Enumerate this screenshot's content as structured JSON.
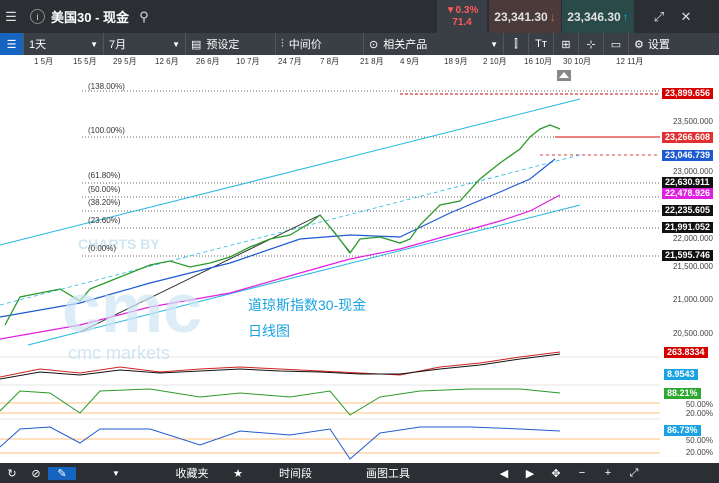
{
  "header": {
    "symbol": "美国30 - 现金",
    "change_pct": "▼0.3%",
    "change_pts": "71.4",
    "sell_price": "23,341.30",
    "buy_price": "23,346.30"
  },
  "toolbar": {
    "interval": "1天",
    "period": "7月",
    "preset": "预设定",
    "price_type": "中间价",
    "related": "相关产品",
    "settings": "设置"
  },
  "time_axis": [
    "1 5月",
    "15 5月",
    "29 5月",
    "12 6月",
    "26 6月",
    "10 7月",
    "24 7月",
    "7 8月",
    "21 8月",
    "4 9月",
    "18 9月",
    "2 10月",
    "16 10月",
    "30 10月",
    "12 11月"
  ],
  "fib_levels": [
    "(138.00%)",
    "(100.00%)",
    "(61.80%)",
    "(50.00%)",
    "(38.20%)",
    "(23.60%)",
    "(0.00%)"
  ],
  "y_axis": [
    "23,500.000",
    "23,000.000",
    "22,500.000",
    "22,000.000",
    "21,500.000",
    "21,000.000",
    "20,500.000"
  ],
  "price_labels": {
    "fib138": "23,899.656",
    "current": "23,266.608",
    "ma_blue": "23,046.739",
    "fib61": "22,630.911",
    "ma_magenta": "22,478.926",
    "fib38": "22,235.605",
    "fib23": "21,991.052",
    "fib0": "21,595.746"
  },
  "indicators": {
    "macd_value": "263.8334",
    "macd_signal": "8.9543",
    "stoch_value": "88.21%",
    "stoch_levels": [
      "50.00%",
      "20.00%"
    ],
    "rsi_value": "86.73%",
    "rsi_levels": [
      "50.00%",
      "20.00%"
    ]
  },
  "annotation": {
    "title": "道琼斯指数30-现金",
    "subtitle": "日线图"
  },
  "watermark": {
    "line1": "CHARTS BY",
    "logo": "cmc",
    "line2": "cmc markets"
  },
  "bottom": {
    "favorites": "收藏夹",
    "timeframe": "时间段",
    "drawing_tools": "画图工具"
  },
  "colors": {
    "accent_blue": "#1565c0",
    "ma_magenta": "#e020e0",
    "fib_red": "#d40000",
    "channel_cyan": "#22b8e0",
    "candle_up": "#2fa82f",
    "candle_down": "#d02020"
  }
}
